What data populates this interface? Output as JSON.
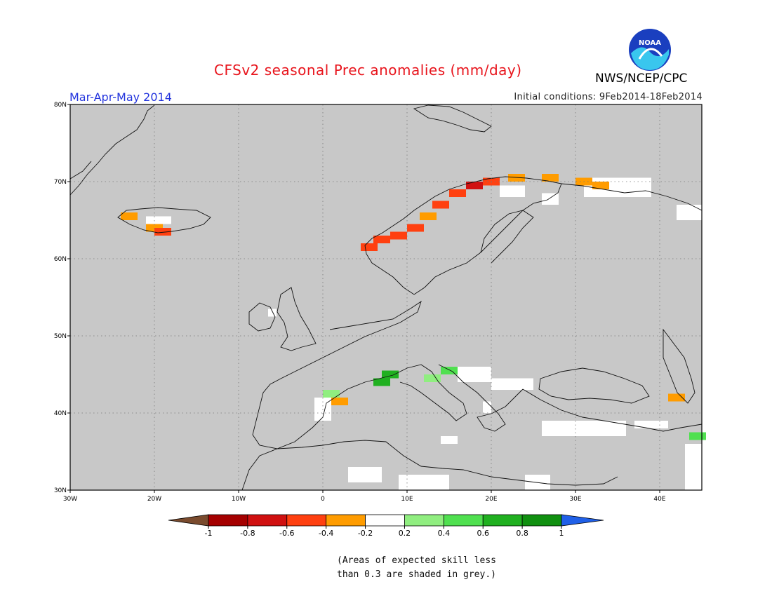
{
  "header": {
    "title": "CFSv2 seasonal Prec anomalies (mm/day)",
    "season": "Mar-Apr-May 2014",
    "initial_conditions": "Initial conditions: 9Feb2014-18Feb2014",
    "agency": "NWS/NCEP/CPC",
    "logo_text": "NOAA"
  },
  "map": {
    "lon_range": [
      -30,
      45
    ],
    "lat_range": [
      30,
      80
    ],
    "lon_ticks": [
      {
        "value": -30,
        "label": "30W"
      },
      {
        "value": -20,
        "label": "20W"
      },
      {
        "value": -10,
        "label": "10W"
      },
      {
        "value": 0,
        "label": "0"
      },
      {
        "value": 10,
        "label": "10E"
      },
      {
        "value": 20,
        "label": "20E"
      },
      {
        "value": 30,
        "label": "30E"
      },
      {
        "value": 40,
        "label": "40E"
      }
    ],
    "lat_ticks": [
      {
        "value": 30,
        "label": "30N"
      },
      {
        "value": 40,
        "label": "40N"
      },
      {
        "value": 50,
        "label": "50N"
      },
      {
        "value": 60,
        "label": "60N"
      },
      {
        "value": 70,
        "label": "70N"
      },
      {
        "value": 80,
        "label": "80N"
      }
    ],
    "background_color": "#c8c8c8",
    "anomaly_cells": [
      {
        "lon": 5.5,
        "lat": 61.5,
        "value": -0.5
      },
      {
        "lon": 7,
        "lat": 62.5,
        "value": -0.6
      },
      {
        "lon": 9,
        "lat": 63,
        "value": -0.6
      },
      {
        "lon": 11,
        "lat": 64,
        "value": -0.5
      },
      {
        "lon": 12.5,
        "lat": 65.5,
        "value": -0.4
      },
      {
        "lon": 14,
        "lat": 67,
        "value": -0.6
      },
      {
        "lon": 16,
        "lat": 68.5,
        "value": -0.6
      },
      {
        "lon": 18,
        "lat": 69.5,
        "value": -0.7
      },
      {
        "lon": 20,
        "lat": 70,
        "value": -0.5
      },
      {
        "lon": 23,
        "lat": 70.5,
        "value": -0.4
      },
      {
        "lon": 27,
        "lat": 70.5,
        "value": -0.3
      },
      {
        "lon": 31,
        "lat": 70,
        "value": -0.3
      },
      {
        "lon": 33,
        "lat": 69.5,
        "value": -0.3
      },
      {
        "lon": -23,
        "lat": 65.5,
        "value": -0.3
      },
      {
        "lon": -20,
        "lat": 64,
        "value": -0.3
      },
      {
        "lon": -19,
        "lat": 63.5,
        "value": -0.6
      },
      {
        "lon": 2,
        "lat": 41.5,
        "value": -0.3
      },
      {
        "lon": 42,
        "lat": 42,
        "value": -0.3
      },
      {
        "lon": 8,
        "lat": 45,
        "value": 0.7
      },
      {
        "lon": 7,
        "lat": 44,
        "value": 0.7
      },
      {
        "lon": 15,
        "lat": 45.5,
        "value": 0.5
      },
      {
        "lon": 13,
        "lat": 44.5,
        "value": 0.3
      },
      {
        "lon": 1,
        "lat": 42.5,
        "value": 0.3
      },
      {
        "lon": 44.5,
        "lat": 37,
        "value": 0.4
      }
    ],
    "neutral_patches": [
      {
        "lon": 21,
        "lat": 68,
        "w": 3,
        "h": 1.5
      },
      {
        "lon": 26,
        "lat": 67,
        "w": 2,
        "h": 1.5
      },
      {
        "lon": 31,
        "lat": 68,
        "w": 8,
        "h": 2.5
      },
      {
        "lon": 42,
        "lat": 65,
        "w": 3,
        "h": 2
      },
      {
        "lon": -21,
        "lat": 64.5,
        "w": 3,
        "h": 1
      },
      {
        "lon": -6.5,
        "lat": 52.5,
        "w": 1,
        "h": 1
      },
      {
        "lon": -1,
        "lat": 39,
        "w": 2,
        "h": 3
      },
      {
        "lon": 16,
        "lat": 44,
        "w": 4,
        "h": 2
      },
      {
        "lon": 20,
        "lat": 43,
        "w": 5,
        "h": 1.5
      },
      {
        "lon": 26,
        "lat": 37,
        "w": 10,
        "h": 2
      },
      {
        "lon": 37,
        "lat": 38,
        "w": 4,
        "h": 1
      },
      {
        "lon": 43,
        "lat": 30,
        "w": 2,
        "h": 6
      },
      {
        "lon": 3,
        "lat": 31,
        "w": 4,
        "h": 2
      },
      {
        "lon": 9,
        "lat": 30,
        "w": 6,
        "h": 2
      },
      {
        "lon": 24,
        "lat": 30,
        "w": 3,
        "h": 2
      },
      {
        "lon": 14,
        "lat": 36,
        "w": 2,
        "h": 1
      },
      {
        "lon": 19,
        "lat": 40,
        "w": 1,
        "h": 1.5
      }
    ]
  },
  "colorbar": {
    "labels": [
      "-1",
      "-0.8",
      "-0.6",
      "-0.4",
      "-0.2",
      "0.2",
      "0.4",
      "0.6",
      "0.8",
      "1"
    ],
    "colors": [
      "#7a4b2e",
      "#a50000",
      "#d01010",
      "#ff4010",
      "#ff9c00",
      "#ffffff",
      "#90ee80",
      "#50e050",
      "#20b020",
      "#109010",
      "#2060e8"
    ],
    "thresholds": [
      -1,
      -0.8,
      -0.6,
      -0.4,
      -0.2,
      0.2,
      0.4,
      0.6,
      0.8,
      1
    ]
  },
  "footnote": {
    "line1": "(Areas of expected skill less",
    "line2": "than 0.3 are shaded in grey.)"
  }
}
